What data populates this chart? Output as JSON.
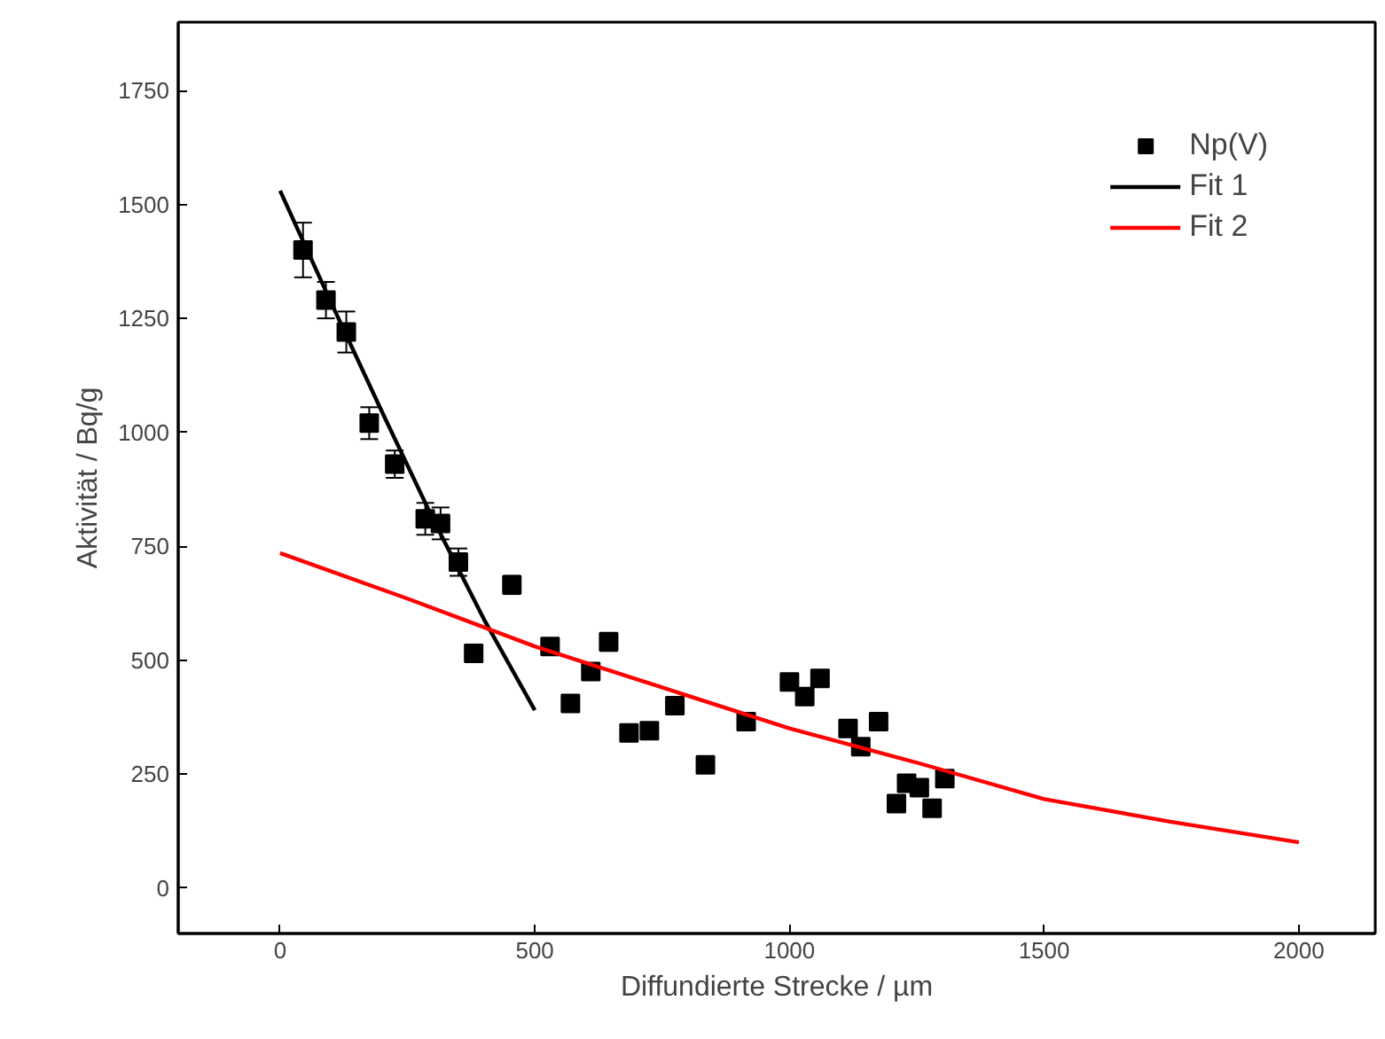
{
  "chart_data": {
    "type": "scatter",
    "xlabel": "Diffundierte Strecke / µm",
    "ylabel": "Aktivität / Bq/g",
    "xlim": [
      -200,
      2150
    ],
    "ylim": [
      -100,
      1900
    ],
    "xticks": [
      0,
      500,
      1000,
      1500,
      2000
    ],
    "yticks": [
      0,
      250,
      500,
      750,
      1000,
      1250,
      1500,
      1750
    ],
    "grid": false,
    "legend": "top right",
    "series": [
      {
        "name": "Np(V)",
        "marker": "square",
        "color": "#000000",
        "x": [
          45,
          90,
          130,
          175,
          225,
          285,
          315,
          350,
          380,
          455,
          530,
          570,
          610,
          645,
          685,
          725,
          775,
          835,
          915,
          1000,
          1030,
          1060,
          1115,
          1140,
          1175,
          1210,
          1230,
          1255,
          1280,
          1305
        ],
        "values": [
          1400,
          1290,
          1220,
          1020,
          930,
          810,
          800,
          715,
          515,
          665,
          530,
          405,
          475,
          540,
          340,
          345,
          400,
          270,
          365,
          452,
          420,
          460,
          350,
          310,
          365,
          185,
          230,
          220,
          175,
          240
        ],
        "errors": [
          60,
          40,
          45,
          35,
          30,
          35,
          35,
          30,
          null,
          20,
          null,
          null,
          null,
          20,
          null,
          null,
          null,
          null,
          null,
          null,
          null,
          null,
          null,
          null,
          null,
          null,
          null,
          null,
          null,
          null
        ]
      },
      {
        "name": "Fit 1",
        "type": "line",
        "line_style": "solid",
        "color": "#000000",
        "x": [
          0,
          100,
          200,
          300,
          400,
          500
        ],
        "values": [
          1530,
          1285,
          1045,
          810,
          590,
          390
        ]
      },
      {
        "name": "Fit 2",
        "type": "line",
        "line_style": "solid",
        "color": "#ff0000",
        "x": [
          0,
          250,
          500,
          750,
          1000,
          1250,
          1500,
          1750,
          2000
        ],
        "values": [
          735,
          635,
          530,
          440,
          350,
          275,
          195,
          145,
          100
        ]
      }
    ]
  }
}
